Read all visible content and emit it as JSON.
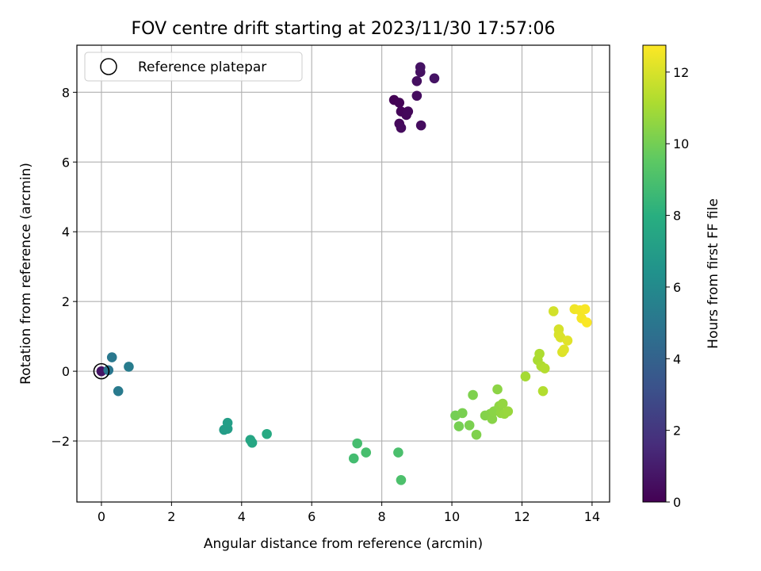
{
  "chart_data": {
    "type": "scatter",
    "title": "FOV centre drift starting at 2023/11/30 17:57:06",
    "xlabel": "Angular distance from reference (arcmin)",
    "ylabel": "Rotation from reference (arcmin)",
    "xlim": [
      -0.7,
      14.5
    ],
    "ylim": [
      -3.75,
      9.35
    ],
    "xticks": [
      0,
      2,
      4,
      6,
      8,
      10,
      12,
      14
    ],
    "yticks": [
      -2,
      0,
      2,
      4,
      6,
      8
    ],
    "grid": true,
    "legend": {
      "placement": "top-left",
      "entries": [
        "Reference platepar"
      ]
    },
    "reference_point": {
      "x": 0,
      "y": 0
    },
    "colorbar": {
      "label": "Hours from first FF file",
      "range": [
        0,
        12.75
      ],
      "ticks": [
        0,
        2,
        4,
        6,
        8,
        10,
        12
      ],
      "colormap": "viridis"
    },
    "points": [
      {
        "x": 8.35,
        "y": 7.78,
        "h": 0.05
      },
      {
        "x": 8.5,
        "y": 7.7,
        "h": 0.1
      },
      {
        "x": 8.55,
        "y": 7.45,
        "h": 0.15
      },
      {
        "x": 8.7,
        "y": 7.35,
        "h": 0.2
      },
      {
        "x": 8.75,
        "y": 7.45,
        "h": 0.25
      },
      {
        "x": 8.5,
        "y": 7.1,
        "h": 0.3
      },
      {
        "x": 8.55,
        "y": 6.98,
        "h": 0.35
      },
      {
        "x": 9.12,
        "y": 7.05,
        "h": 0.4
      },
      {
        "x": 9.0,
        "y": 7.9,
        "h": 0.45
      },
      {
        "x": 9.0,
        "y": 8.32,
        "h": 0.5
      },
      {
        "x": 9.1,
        "y": 8.58,
        "h": 0.55
      },
      {
        "x": 9.1,
        "y": 8.72,
        "h": 0.6
      },
      {
        "x": 9.5,
        "y": 8.4,
        "h": 0.65
      },
      {
        "x": 0.0,
        "y": 0.0,
        "h": 0.7
      },
      {
        "x": 0.2,
        "y": 0.03,
        "h": 5.0
      },
      {
        "x": 0.3,
        "y": 0.4,
        "h": 5.1
      },
      {
        "x": 0.48,
        "y": -0.57,
        "h": 5.2
      },
      {
        "x": 0.78,
        "y": 0.13,
        "h": 5.3
      },
      {
        "x": 3.5,
        "y": -1.68,
        "h": 7.0
      },
      {
        "x": 3.6,
        "y": -1.65,
        "h": 7.05
      },
      {
        "x": 3.6,
        "y": -1.48,
        "h": 7.1
      },
      {
        "x": 4.25,
        "y": -1.97,
        "h": 7.5
      },
      {
        "x": 4.3,
        "y": -2.05,
        "h": 7.55
      },
      {
        "x": 4.72,
        "y": -1.8,
        "h": 7.7
      },
      {
        "x": 7.2,
        "y": -2.5,
        "h": 8.8
      },
      {
        "x": 7.3,
        "y": -2.07,
        "h": 8.85
      },
      {
        "x": 7.55,
        "y": -2.33,
        "h": 8.9
      },
      {
        "x": 8.47,
        "y": -2.33,
        "h": 9.0
      },
      {
        "x": 8.55,
        "y": -3.12,
        "h": 9.05
      },
      {
        "x": 10.1,
        "y": -1.27,
        "h": 10.0
      },
      {
        "x": 10.2,
        "y": -1.58,
        "h": 10.05
      },
      {
        "x": 10.3,
        "y": -1.2,
        "h": 10.1
      },
      {
        "x": 10.5,
        "y": -1.55,
        "h": 10.15
      },
      {
        "x": 10.6,
        "y": -0.68,
        "h": 10.2
      },
      {
        "x": 10.7,
        "y": -1.82,
        "h": 10.25
      },
      {
        "x": 10.95,
        "y": -1.27,
        "h": 10.3
      },
      {
        "x": 11.1,
        "y": -1.22,
        "h": 10.35
      },
      {
        "x": 11.15,
        "y": -1.37,
        "h": 10.4
      },
      {
        "x": 11.2,
        "y": -1.15,
        "h": 10.45
      },
      {
        "x": 11.3,
        "y": -0.52,
        "h": 10.5
      },
      {
        "x": 11.35,
        "y": -1.0,
        "h": 10.55
      },
      {
        "x": 11.4,
        "y": -1.2,
        "h": 10.6
      },
      {
        "x": 11.45,
        "y": -0.93,
        "h": 10.65
      },
      {
        "x": 11.5,
        "y": -1.22,
        "h": 10.7
      },
      {
        "x": 11.6,
        "y": -1.15,
        "h": 10.75
      },
      {
        "x": 12.1,
        "y": -0.15,
        "h": 11.0
      },
      {
        "x": 12.45,
        "y": 0.32,
        "h": 11.1
      },
      {
        "x": 12.5,
        "y": 0.5,
        "h": 11.15
      },
      {
        "x": 12.55,
        "y": 0.15,
        "h": 11.2
      },
      {
        "x": 12.6,
        "y": -0.57,
        "h": 11.25
      },
      {
        "x": 12.65,
        "y": 0.08,
        "h": 11.3
      },
      {
        "x": 12.9,
        "y": 1.72,
        "h": 11.9
      },
      {
        "x": 13.05,
        "y": 1.2,
        "h": 11.95
      },
      {
        "x": 13.05,
        "y": 1.05,
        "h": 12.0
      },
      {
        "x": 13.1,
        "y": 0.97,
        "h": 12.05
      },
      {
        "x": 13.15,
        "y": 0.55,
        "h": 12.1
      },
      {
        "x": 13.2,
        "y": 0.62,
        "h": 12.15
      },
      {
        "x": 13.3,
        "y": 0.88,
        "h": 12.2
      },
      {
        "x": 13.5,
        "y": 1.78,
        "h": 12.5
      },
      {
        "x": 13.65,
        "y": 1.75,
        "h": 12.55
      },
      {
        "x": 13.7,
        "y": 1.52,
        "h": 12.6
      },
      {
        "x": 13.8,
        "y": 1.78,
        "h": 12.65
      },
      {
        "x": 13.85,
        "y": 1.4,
        "h": 12.7
      }
    ]
  }
}
